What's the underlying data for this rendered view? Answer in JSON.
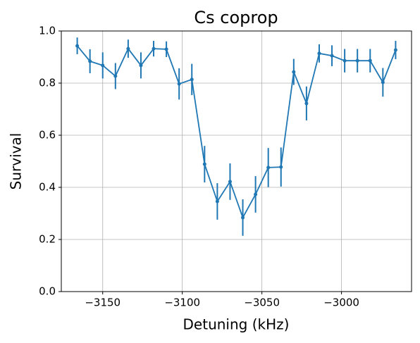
{
  "chart_data": {
    "type": "errorbar_line",
    "title": "Cs coprop",
    "xlabel": "Detuning (kHz)",
    "ylabel": "Survival",
    "x": [
      -3166,
      -3158,
      -3150,
      -3142,
      -3134,
      -3126,
      -3118,
      -3110,
      -3102,
      -3094,
      -3086,
      -3078,
      -3070,
      -3062,
      -3054,
      -3046,
      -3038,
      -3030,
      -3022,
      -3014,
      -3006,
      -2998,
      -2990,
      -2982,
      -2974,
      -2966
    ],
    "series": [
      {
        "name": "Survival",
        "color": "#1f77b4",
        "values": [
          0.943,
          0.884,
          0.868,
          0.827,
          0.932,
          0.868,
          0.932,
          0.93,
          0.797,
          0.814,
          0.489,
          0.346,
          0.422,
          0.284,
          0.373,
          0.476,
          0.478,
          0.843,
          0.722,
          0.914,
          0.905,
          0.886,
          0.886,
          0.886,
          0.803,
          0.927
        ],
        "errors": [
          0.032,
          0.046,
          0.05,
          0.05,
          0.035,
          0.05,
          0.03,
          0.03,
          0.06,
          0.06,
          0.07,
          0.07,
          0.07,
          0.07,
          0.07,
          0.075,
          0.075,
          0.05,
          0.065,
          0.035,
          0.04,
          0.045,
          0.045,
          0.045,
          0.055,
          0.035
        ]
      }
    ],
    "xlim": [
      -3176,
      -2956
    ],
    "xticks": [
      {
        "value": -3150,
        "label": "−3150"
      },
      {
        "value": -3100,
        "label": "−3100"
      },
      {
        "value": -3050,
        "label": "−3050"
      },
      {
        "value": -3000,
        "label": "−3000"
      }
    ],
    "ylim": [
      0,
      1
    ],
    "yticks": [
      {
        "value": 0,
        "label": "0.0"
      },
      {
        "value": 0.2,
        "label": "0.2"
      },
      {
        "value": 0.4,
        "label": "0.4"
      },
      {
        "value": 0.6,
        "label": "0.6"
      },
      {
        "value": 0.8,
        "label": "0.8"
      },
      {
        "value": 1,
        "label": "1.0"
      }
    ],
    "grid": true
  }
}
